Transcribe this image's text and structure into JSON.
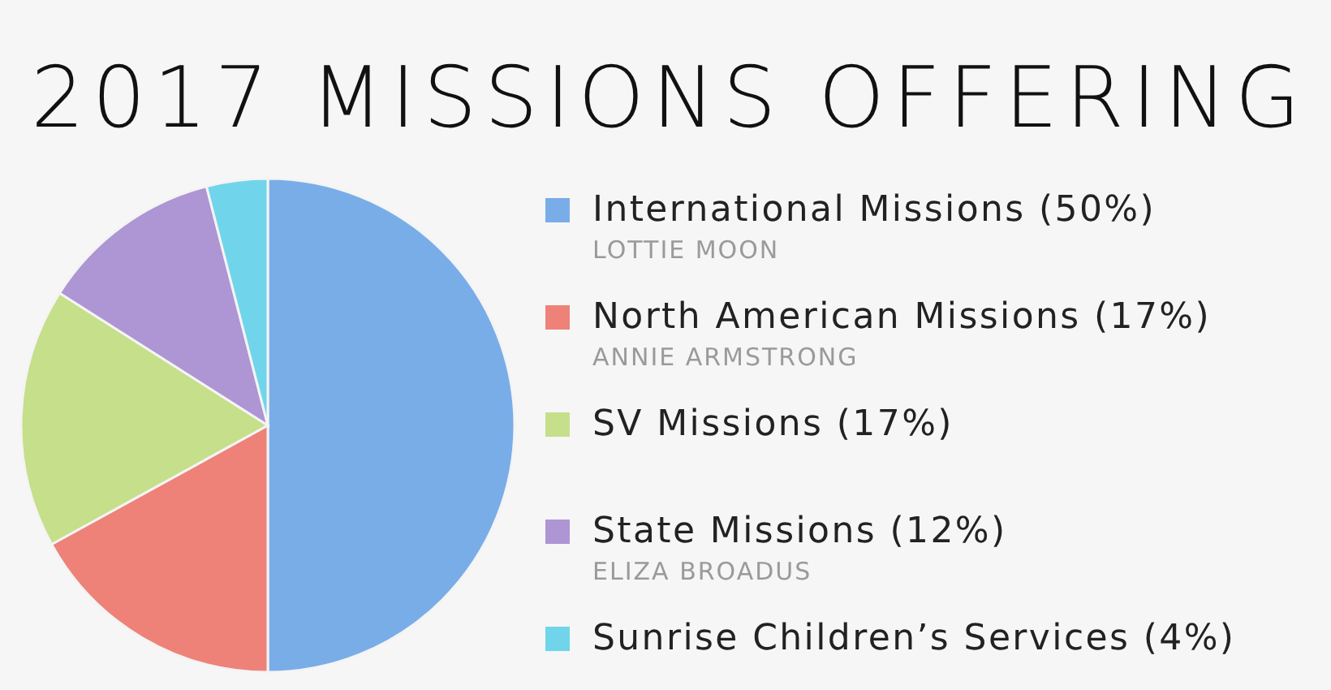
{
  "chart_data": {
    "type": "pie",
    "title": "2017 MISSIONS OFFERING",
    "categories": [
      "International Missions",
      "North American Missions",
      "SV Missions",
      "State Missions",
      "Sunrise Children’s Services"
    ],
    "values": [
      50,
      17,
      17,
      12,
      4
    ],
    "value_labels": [
      "(50%)",
      "(17%)",
      "(17%)",
      "(12%)",
      "(4%)"
    ],
    "colors": [
      "#79ade8",
      "#ee8279",
      "#c5df8a",
      "#ae95d3",
      "#70d5ea"
    ],
    "legend": "right",
    "annotations": [
      {
        "text": "LOTTIE MOON",
        "x": "International Missions"
      },
      {
        "text": "ANNIE ARMSTRONG",
        "x": "North American Missions"
      },
      {
        "text": "ELIZA BROADUS",
        "x": "State Missions"
      }
    ]
  }
}
